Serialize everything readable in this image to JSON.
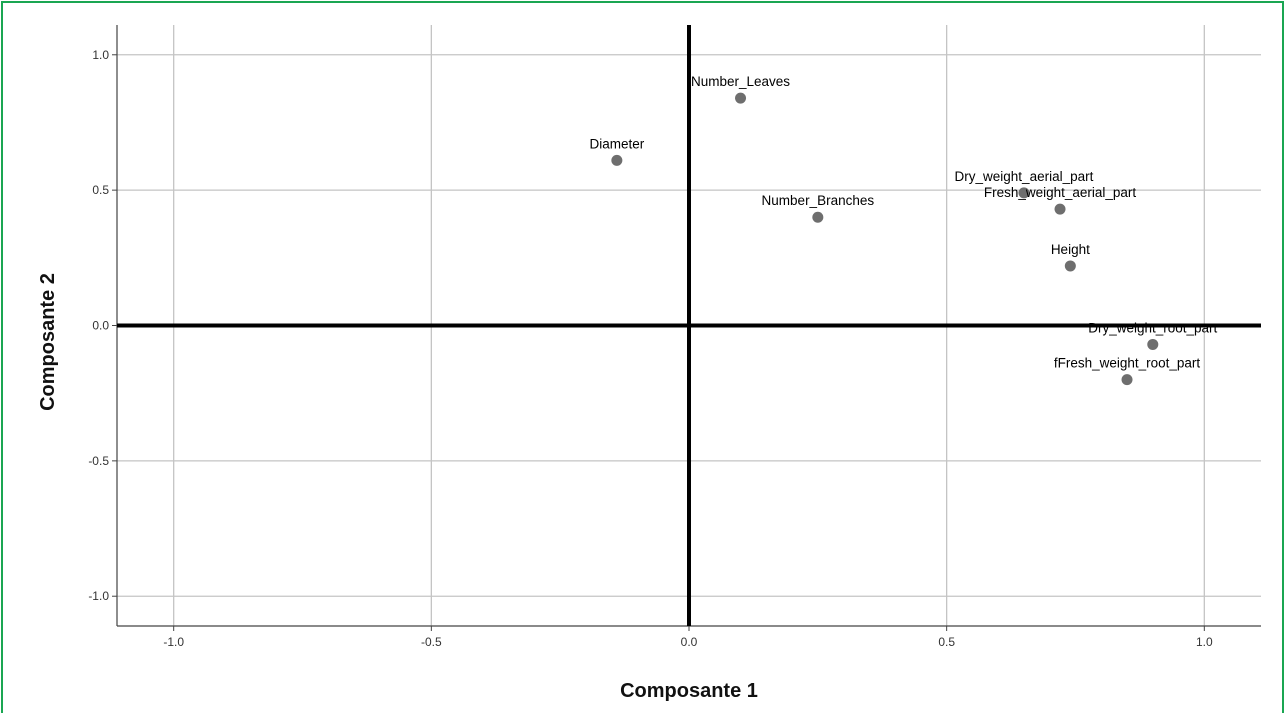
{
  "colors": {
    "frame_border": "#1aa652",
    "grid": "#c4c4c4",
    "axis_zero": "#000000",
    "point": "#6e6e6e"
  },
  "chart_data": {
    "type": "scatter",
    "xlabel": "Composante 1",
    "ylabel": "Composante 2",
    "xlim": [
      -1.11,
      1.11
    ],
    "ylim": [
      -1.11,
      1.11
    ],
    "x_ticks": [
      -1.0,
      -0.5,
      0.0,
      0.5,
      1.0
    ],
    "y_ticks": [
      -1.0,
      -0.5,
      0.0,
      0.5,
      1.0
    ],
    "x_tick_labels": [
      "-1.0",
      "-0.5",
      "0.0",
      "0.5",
      "1.0"
    ],
    "y_tick_labels": [
      "-1.0",
      "-0.5",
      "0.0",
      "0.5",
      "1.0"
    ],
    "grid": true,
    "points": [
      {
        "label": "Number_Leaves",
        "x": 0.1,
        "y": 0.84
      },
      {
        "label": "Diameter",
        "x": -0.14,
        "y": 0.61
      },
      {
        "label": "Dry_weight_aerial_part",
        "x": 0.65,
        "y": 0.49
      },
      {
        "label": "Number_Branches",
        "x": 0.25,
        "y": 0.4
      },
      {
        "label": "Fresh_weight_aerial_part",
        "x": 0.72,
        "y": 0.43
      },
      {
        "label": "Height",
        "x": 0.74,
        "y": 0.22
      },
      {
        "label": "Dry_weight_root_part",
        "x": 0.9,
        "y": -0.07
      },
      {
        "label": "fFresh_weight_root_part",
        "x": 0.85,
        "y": -0.2
      }
    ]
  }
}
